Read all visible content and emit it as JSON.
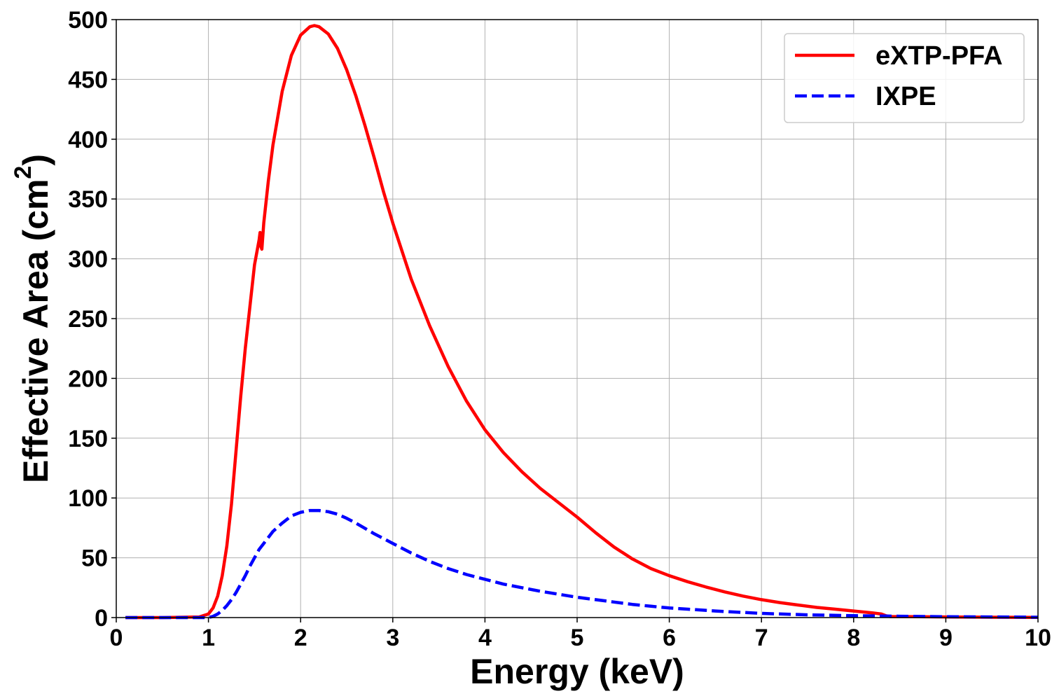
{
  "chart_data": {
    "type": "line",
    "title": "",
    "xlabel": "Energy (keV)",
    "ylabel_main": "Effective Area (cm",
    "ylabel_sup": "2",
    "ylabel_close": ")",
    "xlim": [
      0,
      10
    ],
    "ylim": [
      0,
      500
    ],
    "xticks": [
      0,
      1,
      2,
      3,
      4,
      5,
      6,
      7,
      8,
      9,
      10
    ],
    "xtick_labels": [
      "0",
      "1",
      "2",
      "3",
      "4",
      "5",
      "6",
      "7",
      "8",
      "9",
      "10"
    ],
    "yticks": [
      0,
      50,
      100,
      150,
      200,
      250,
      300,
      350,
      400,
      450,
      500
    ],
    "ytick_labels": [
      "0",
      "50",
      "100",
      "150",
      "200",
      "250",
      "300",
      "350",
      "400",
      "450",
      "500"
    ],
    "grid": true,
    "legend_position": "top-right",
    "series": [
      {
        "name": "eXTP-PFA",
        "color": "#ff0000",
        "style": "solid",
        "points": [
          [
            0.1,
            0
          ],
          [
            0.5,
            0
          ],
          [
            0.9,
            0.5
          ],
          [
            1.0,
            3
          ],
          [
            1.05,
            8
          ],
          [
            1.1,
            18
          ],
          [
            1.15,
            35
          ],
          [
            1.2,
            60
          ],
          [
            1.25,
            95
          ],
          [
            1.3,
            140
          ],
          [
            1.35,
            185
          ],
          [
            1.4,
            225
          ],
          [
            1.45,
            260
          ],
          [
            1.5,
            295
          ],
          [
            1.55,
            316
          ],
          [
            1.56,
            322
          ],
          [
            1.57,
            310
          ],
          [
            1.58,
            308
          ],
          [
            1.6,
            330
          ],
          [
            1.65,
            365
          ],
          [
            1.7,
            395
          ],
          [
            1.8,
            440
          ],
          [
            1.9,
            470
          ],
          [
            2.0,
            487
          ],
          [
            2.1,
            494
          ],
          [
            2.15,
            495
          ],
          [
            2.2,
            494
          ],
          [
            2.3,
            488
          ],
          [
            2.4,
            476
          ],
          [
            2.5,
            458
          ],
          [
            2.6,
            436
          ],
          [
            2.7,
            411
          ],
          [
            2.8,
            384
          ],
          [
            2.9,
            356
          ],
          [
            3.0,
            330
          ],
          [
            3.2,
            283
          ],
          [
            3.4,
            244
          ],
          [
            3.6,
            210
          ],
          [
            3.8,
            181
          ],
          [
            4.0,
            157
          ],
          [
            4.2,
            138
          ],
          [
            4.4,
            122
          ],
          [
            4.6,
            108
          ],
          [
            4.8,
            96
          ],
          [
            5.0,
            84
          ],
          [
            5.2,
            71
          ],
          [
            5.4,
            59
          ],
          [
            5.6,
            49
          ],
          [
            5.8,
            41
          ],
          [
            6.0,
            35
          ],
          [
            6.2,
            30
          ],
          [
            6.4,
            25.5
          ],
          [
            6.6,
            21.5
          ],
          [
            6.8,
            18
          ],
          [
            7.0,
            15
          ],
          [
            7.2,
            12.5
          ],
          [
            7.4,
            10.5
          ],
          [
            7.6,
            8.5
          ],
          [
            7.8,
            7
          ],
          [
            8.0,
            5.5
          ],
          [
            8.2,
            4
          ],
          [
            8.3,
            3
          ],
          [
            8.35,
            1.5
          ],
          [
            8.4,
            0.8
          ],
          [
            8.6,
            0.8
          ],
          [
            9.0,
            0.5
          ],
          [
            9.5,
            0.3
          ],
          [
            10.0,
            0.2
          ]
        ]
      },
      {
        "name": "IXPE",
        "color": "#0000ff",
        "style": "dashed",
        "points": [
          [
            0.1,
            0
          ],
          [
            0.5,
            0
          ],
          [
            1.0,
            0
          ],
          [
            1.05,
            1
          ],
          [
            1.1,
            3
          ],
          [
            1.15,
            6
          ],
          [
            1.2,
            10
          ],
          [
            1.25,
            15
          ],
          [
            1.3,
            21
          ],
          [
            1.35,
            28
          ],
          [
            1.4,
            35
          ],
          [
            1.45,
            43
          ],
          [
            1.5,
            50
          ],
          [
            1.55,
            57
          ],
          [
            1.6,
            62
          ],
          [
            1.7,
            72
          ],
          [
            1.8,
            79
          ],
          [
            1.9,
            85
          ],
          [
            2.0,
            88
          ],
          [
            2.1,
            89.5
          ],
          [
            2.2,
            89.5
          ],
          [
            2.3,
            88.5
          ],
          [
            2.4,
            86.5
          ],
          [
            2.5,
            83
          ],
          [
            2.6,
            79
          ],
          [
            2.8,
            70
          ],
          [
            3.0,
            62
          ],
          [
            3.2,
            54
          ],
          [
            3.4,
            47
          ],
          [
            3.6,
            41
          ],
          [
            3.8,
            36
          ],
          [
            4.0,
            32
          ],
          [
            4.2,
            28
          ],
          [
            4.4,
            25
          ],
          [
            4.6,
            22
          ],
          [
            4.8,
            19.5
          ],
          [
            5.0,
            17
          ],
          [
            5.2,
            15
          ],
          [
            5.4,
            13
          ],
          [
            5.6,
            11
          ],
          [
            5.8,
            9.5
          ],
          [
            6.0,
            8
          ],
          [
            6.2,
            7
          ],
          [
            6.5,
            5.5
          ],
          [
            7.0,
            3.5
          ],
          [
            7.5,
            2.3
          ],
          [
            8.0,
            1.6
          ],
          [
            8.5,
            1.1
          ],
          [
            9.0,
            0.7
          ],
          [
            9.5,
            0.5
          ],
          [
            10.0,
            0.3
          ]
        ]
      }
    ]
  }
}
